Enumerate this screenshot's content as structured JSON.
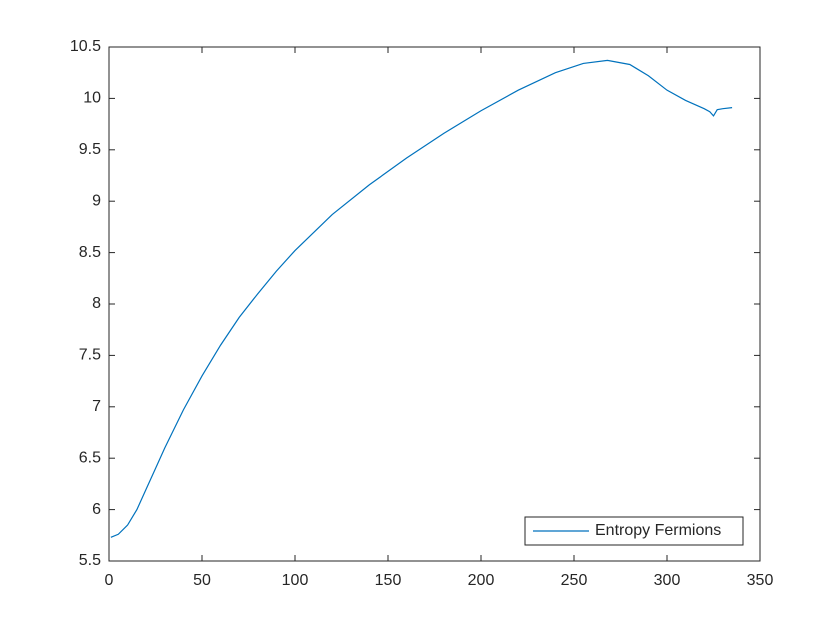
{
  "chart_data": {
    "type": "line",
    "x": [
      1,
      5,
      10,
      15,
      20,
      25,
      30,
      40,
      50,
      60,
      70,
      80,
      90,
      100,
      120,
      140,
      160,
      180,
      200,
      220,
      240,
      255,
      268,
      280,
      290,
      300,
      310,
      320,
      323,
      325,
      327,
      330,
      335
    ],
    "series": [
      {
        "name": "Entropy Fermions",
        "color": "#0072bd",
        "values": [
          5.73,
          5.76,
          5.85,
          6.0,
          6.2,
          6.4,
          6.6,
          6.97,
          7.3,
          7.6,
          7.87,
          8.1,
          8.32,
          8.52,
          8.87,
          9.16,
          9.42,
          9.66,
          9.88,
          10.08,
          10.25,
          10.34,
          10.37,
          10.33,
          10.22,
          10.08,
          9.98,
          9.9,
          9.87,
          9.83,
          9.89,
          9.9,
          9.91
        ]
      }
    ],
    "xlim": [
      0,
      350
    ],
    "xticks": [
      0,
      50,
      100,
      150,
      200,
      250,
      300,
      350
    ],
    "ylim": [
      5.5,
      10.5
    ],
    "yticks": [
      5.5,
      6,
      6.5,
      7,
      7.5,
      8,
      8.5,
      9,
      9.5,
      10,
      10.5
    ],
    "grid": false,
    "legend": "lower right"
  }
}
